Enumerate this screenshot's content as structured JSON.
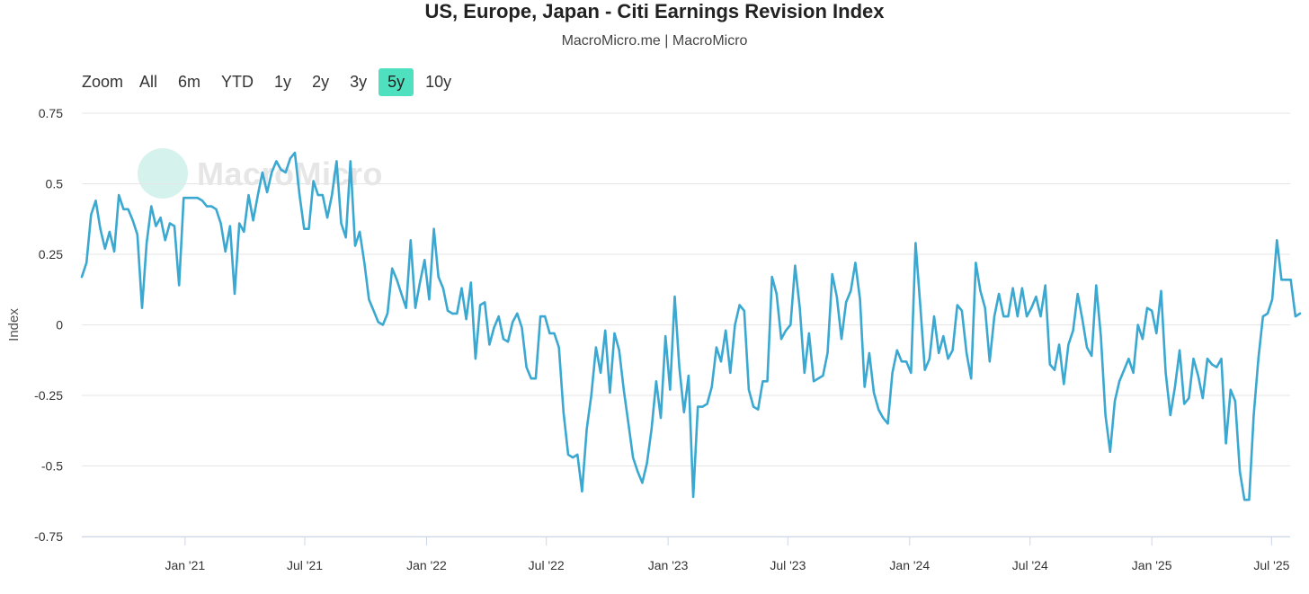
{
  "header": {
    "title": "US, Europe, Japan - Citi Earnings Revision Index",
    "subtitle": "MacroMicro.me | MacroMicro"
  },
  "zoom": {
    "label": "Zoom",
    "buttons": [
      "All",
      "6m",
      "YTD",
      "1y",
      "2y",
      "3y",
      "5y",
      "10y"
    ],
    "active": "5y",
    "active_color": "#4fe0bf"
  },
  "watermark": {
    "text": "MacroMicro"
  },
  "colors": {
    "line": "#3aa8d0",
    "grid": "#e6e6e6",
    "axis": "#ccd6eb"
  },
  "chart_data": {
    "type": "line",
    "title": "US, Europe, Japan - Citi Earnings Revision Index",
    "ylabel": "Index",
    "xlabel": "",
    "ylim": [
      -0.75,
      0.75
    ],
    "yticks": [
      0.75,
      0.5,
      0.25,
      0,
      -0.25,
      -0.5,
      -0.75
    ],
    "ytick_labels": [
      "0.75",
      "0.5",
      "0.25",
      "0",
      "-0.25",
      "-0.5",
      "-0.75"
    ],
    "xlim": [
      "2020-07-29",
      "2025-07-29"
    ],
    "xticks": [
      {
        "date": "2021-01-01",
        "label": "Jan '21"
      },
      {
        "date": "2021-07-01",
        "label": "Jul '21"
      },
      {
        "date": "2022-01-01",
        "label": "Jan '22"
      },
      {
        "date": "2022-07-01",
        "label": "Jul '22"
      },
      {
        "date": "2023-01-01",
        "label": "Jan '23"
      },
      {
        "date": "2023-07-01",
        "label": "Jul '23"
      },
      {
        "date": "2024-01-01",
        "label": "Jan '24"
      },
      {
        "date": "2024-07-01",
        "label": "Jul '24"
      },
      {
        "date": "2025-01-01",
        "label": "Jan '25"
      },
      {
        "date": "2025-07-01",
        "label": "Jul '25"
      }
    ],
    "series": [
      {
        "name": "US, Europe, Japan - Citi Earnings Revision Index",
        "start": "2020-07-29",
        "interval_days": 7,
        "values": [
          0.17,
          0.22,
          0.39,
          0.44,
          0.34,
          0.27,
          0.33,
          0.26,
          0.46,
          0.41,
          0.41,
          0.37,
          0.32,
          0.06,
          0.29,
          0.42,
          0.35,
          0.38,
          0.3,
          0.36,
          0.35,
          0.14,
          0.45,
          0.45,
          0.45,
          0.45,
          0.44,
          0.42,
          0.42,
          0.41,
          0.36,
          0.26,
          0.35,
          0.11,
          0.36,
          0.33,
          0.46,
          0.37,
          0.46,
          0.54,
          0.47,
          0.54,
          0.58,
          0.55,
          0.54,
          0.59,
          0.61,
          0.46,
          0.34,
          0.34,
          0.51,
          0.46,
          0.46,
          0.38,
          0.46,
          0.58,
          0.36,
          0.31,
          0.58,
          0.28,
          0.33,
          0.22,
          0.09,
          0.05,
          0.01,
          0.0,
          0.04,
          0.2,
          0.16,
          0.11,
          0.06,
          0.3,
          0.06,
          0.15,
          0.23,
          0.09,
          0.34,
          0.17,
          0.13,
          0.05,
          0.04,
          0.04,
          0.13,
          0.02,
          0.15,
          -0.12,
          0.07,
          0.08,
          -0.07,
          -0.01,
          0.03,
          -0.05,
          -0.06,
          0.01,
          0.04,
          -0.01,
          -0.15,
          -0.19,
          -0.19,
          0.03,
          0.03,
          -0.03,
          -0.03,
          -0.08,
          -0.31,
          -0.46,
          -0.47,
          -0.46,
          -0.59,
          -0.37,
          -0.25,
          -0.08,
          -0.17,
          -0.02,
          -0.24,
          -0.03,
          -0.09,
          -0.23,
          -0.35,
          -0.47,
          -0.52,
          -0.56,
          -0.49,
          -0.37,
          -0.2,
          -0.33,
          -0.04,
          -0.23,
          0.1,
          -0.15,
          -0.31,
          -0.18,
          -0.61,
          -0.29,
          -0.29,
          -0.28,
          -0.22,
          -0.08,
          -0.13,
          -0.02,
          -0.17,
          0.0,
          0.07,
          0.05,
          -0.23,
          -0.29,
          -0.3,
          -0.2,
          -0.2,
          0.17,
          0.11,
          -0.05,
          -0.02,
          0.0,
          0.21,
          0.06,
          -0.17,
          -0.03,
          -0.2,
          -0.19,
          -0.18,
          -0.1,
          0.18,
          0.1,
          -0.05,
          0.08,
          0.12,
          0.22,
          0.09,
          -0.22,
          -0.1,
          -0.24,
          -0.3,
          -0.33,
          -0.35,
          -0.17,
          -0.09,
          -0.13,
          -0.13,
          -0.17,
          0.29,
          0.07,
          -0.16,
          -0.12,
          0.03,
          -0.1,
          -0.04,
          -0.12,
          -0.09,
          0.07,
          0.05,
          -0.1,
          -0.19,
          0.22,
          0.12,
          0.06,
          -0.13,
          0.03,
          0.11,
          0.03,
          0.03,
          0.13,
          0.03,
          0.13,
          0.03,
          0.06,
          0.1,
          0.03,
          0.14,
          -0.14,
          -0.16,
          -0.07,
          -0.21,
          -0.07,
          -0.02,
          0.11,
          0.02,
          -0.08,
          -0.11,
          0.14,
          -0.04,
          -0.32,
          -0.45,
          -0.27,
          -0.2,
          -0.16,
          -0.12,
          -0.17,
          0.0,
          -0.05,
          0.06,
          0.05,
          -0.03,
          0.12,
          -0.17,
          -0.32,
          -0.22,
          -0.09,
          -0.28,
          -0.26,
          -0.12,
          -0.18,
          -0.26,
          -0.12,
          -0.14,
          -0.15,
          -0.12,
          -0.42,
          -0.23,
          -0.27,
          -0.52,
          -0.62,
          -0.62,
          -0.32,
          -0.12,
          0.03,
          0.04,
          0.09,
          0.3,
          0.16,
          0.16,
          0.16,
          0.03,
          0.04
        ]
      }
    ]
  }
}
